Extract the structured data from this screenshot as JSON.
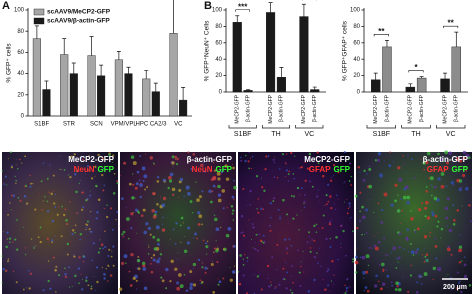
{
  "chart_data": [
    {
      "type": "bar",
      "panel": "A",
      "ylabel": "% GFP⁺ cells",
      "categories": [
        "S1BF",
        "STR",
        "SCN",
        "VPM/VPL",
        "HPC CA2/3",
        "VC"
      ],
      "series": [
        {
          "name": "scAAV9/MeCP2-GFP",
          "color": "#a6a6a6",
          "values": [
            73,
            58,
            57,
            53,
            35,
            78
          ],
          "errors": [
            12,
            15,
            18,
            8,
            8,
            35
          ]
        },
        {
          "name": "scAAV9/β-actin-GFP",
          "color": "#1a1a1a",
          "values": [
            25,
            40,
            38,
            40,
            23,
            15
          ],
          "errors": [
            8,
            10,
            10,
            6,
            8,
            12
          ]
        }
      ],
      "ylim": [
        0,
        100
      ],
      "yticks": [
        0,
        20,
        40,
        60,
        80,
        100
      ],
      "legend": "upper left"
    },
    {
      "type": "bar",
      "panel": "B",
      "ylabel": "% GFP⁺NeuN⁺ Cells",
      "categories": [
        "S1BF",
        "TH",
        "VC"
      ],
      "series": [
        {
          "name": "MeCP2-GFP",
          "color": "#1a1a1a",
          "values": [
            85,
            97,
            92
          ],
          "errors": [
            8,
            12,
            15
          ]
        },
        {
          "name": "β-actin-GFP",
          "color": "#1a1a1a",
          "values": [
            2,
            18,
            3
          ],
          "errors": [
            1,
            12,
            3
          ]
        }
      ],
      "annotations": [
        "***",
        "**",
        "***"
      ],
      "ylim": [
        0,
        100
      ],
      "yticks": [
        0,
        20,
        40,
        60,
        80,
        100
      ]
    },
    {
      "type": "bar",
      "ylabel": "% GFP⁺GFAP⁺ cells",
      "categories": [
        "S1BF",
        "TH",
        "VC"
      ],
      "series": [
        {
          "name": "MeCP2-GFP",
          "color": "#1a1a1a",
          "values": [
            15,
            6,
            16
          ],
          "errors": [
            8,
            4,
            7
          ]
        },
        {
          "name": "β-actin-GFP",
          "color": "#8c8c8c",
          "values": [
            55,
            17,
            55
          ],
          "errors": [
            8,
            2,
            18
          ]
        }
      ],
      "annotations": [
        "**",
        "*",
        "**"
      ],
      "ylim": [
        0,
        100
      ],
      "yticks": [
        0,
        20,
        40,
        60,
        80,
        100
      ]
    }
  ],
  "images": {
    "label": "C",
    "scale_bar": "200 µm",
    "panels": [
      {
        "title": "MeCP2-GFP",
        "stain": "NeuN",
        "marker": "GFP"
      },
      {
        "title": "β-actin-GFP",
        "stain": "NeuN",
        "marker": "GFP"
      },
      {
        "title": "MeCP2-GFP",
        "stain": "GFAP",
        "marker": "GFP"
      },
      {
        "title": "β-actin-GFP",
        "stain": "GFAP",
        "marker": "GFP"
      }
    ]
  }
}
